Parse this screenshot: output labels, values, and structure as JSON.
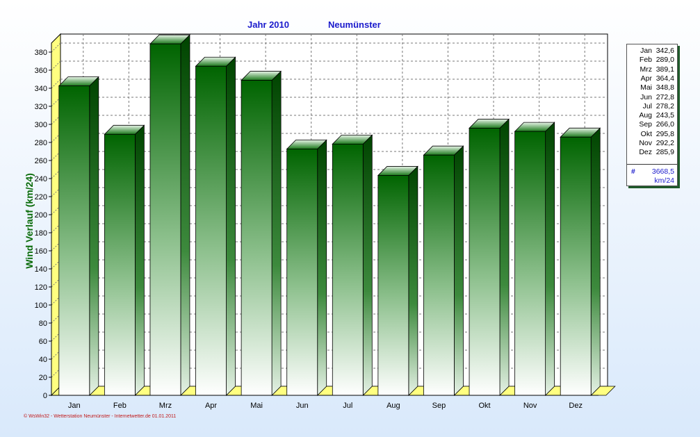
{
  "title": {
    "year": "Jahr  2010",
    "location": "Neumünster"
  },
  "footer": "© WsWin32 - Wetterstation Neumünster - Internetwetter.de  01.01.2011",
  "chart_data": {
    "type": "bar",
    "categories": [
      "Jan",
      "Feb",
      "Mrz",
      "Apr",
      "Mai",
      "Jun",
      "Jul",
      "Aug",
      "Sep",
      "Okt",
      "Nov",
      "Dez"
    ],
    "values": [
      342.6,
      289.0,
      389.1,
      364.4,
      348.8,
      272.8,
      278.2,
      243.5,
      266.0,
      295.8,
      292.2,
      285.9
    ],
    "value_labels": [
      "342,6",
      "289,0",
      "389,1",
      "364,4",
      "348,8",
      "272,8",
      "278,2",
      "243,5",
      "266,0",
      "295,8",
      "292,2",
      "285,9"
    ],
    "ylabel": "Wind Verlauf  (km/24)",
    "ylim": [
      0,
      390
    ],
    "yticks": [
      0,
      20,
      40,
      60,
      80,
      100,
      120,
      140,
      160,
      180,
      200,
      220,
      240,
      260,
      280,
      300,
      320,
      340,
      360,
      380
    ],
    "grid": true,
    "legend": {
      "placement": "right",
      "total_symbol": "#",
      "total": "3668,5",
      "unit": "km/24"
    },
    "colors": {
      "bar_top": "#006400",
      "bar_bottom": "#ffffff",
      "floor": "#ffff80",
      "grid": "#777777"
    }
  }
}
